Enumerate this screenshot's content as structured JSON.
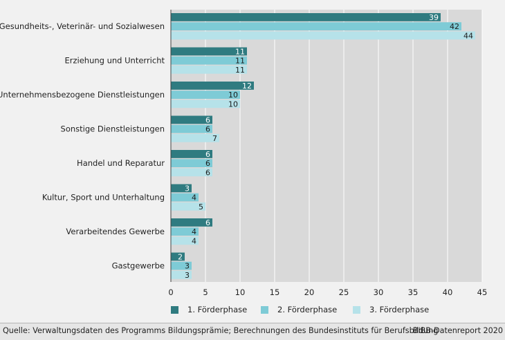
{
  "chart_data": {
    "type": "bar",
    "orientation": "horizontal",
    "categories": [
      "Gesundheits-, Veterinär- und Sozialwesen",
      "Erziehung und Unterricht",
      "Unternehmensbezogene Dienstleistungen",
      "Sonstige Dienstleistungen",
      "Handel und Reparatur",
      "Kultur, Sport und Unterhaltung",
      "Verarbeitendes Gewerbe",
      "Gastgewerbe"
    ],
    "series": [
      {
        "name": "1. Förderphase",
        "color": "#2f7b80",
        "label_color": "#ffffff",
        "values": [
          39,
          11,
          12,
          6,
          6,
          3,
          6,
          2
        ]
      },
      {
        "name": "2. Förderphase",
        "color": "#7ecbd6",
        "label_color": "#1a1a1a",
        "values": [
          42,
          11,
          10,
          6,
          6,
          4,
          4,
          3
        ]
      },
      {
        "name": "3. Förderphase",
        "color": "#b6e2e9",
        "label_color": "#1a1a1a",
        "values": [
          44,
          11,
          10,
          7,
          6,
          5,
          4,
          3
        ]
      }
    ],
    "xlim": [
      0,
      45
    ],
    "xticks": [
      0,
      5,
      10,
      15,
      20,
      25,
      30,
      35,
      40,
      45
    ],
    "grid": true,
    "legend_position": "bottom"
  },
  "footer": {
    "source": "Quelle: Verwaltungsdaten des Programms Bildungsprämie; Berechnungen des Bundesinstituts für Berufsbildung",
    "credit": "BIBB-Datenreport 2020"
  },
  "colors": {
    "background": "#f1f1f1",
    "plot_background": "#d9d9d9",
    "gridline": "#ffffff"
  }
}
